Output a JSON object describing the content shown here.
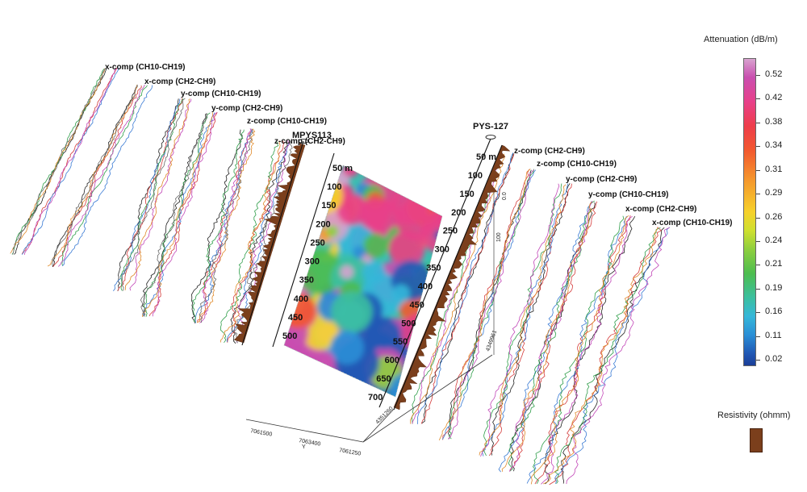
{
  "legend": {
    "attenuation_title": "Attenuation (dB/m)",
    "attenuation_ticks": [
      "0.52",
      "0.42",
      "0.38",
      "0.34",
      "0.31",
      "0.29",
      "0.26",
      "0.24",
      "0.21",
      "0.19",
      "0.16",
      "0.11",
      "0.02"
    ],
    "resistivity_title": "Resistivity (ohmm)",
    "resistivity_color": "#7b3f1c"
  },
  "boreholes": {
    "left": "MPYS113",
    "right": "PYS-127"
  },
  "left_depths": [
    "50 m",
    "100",
    "150",
    "200",
    "250",
    "300",
    "350",
    "400",
    "450",
    "500"
  ],
  "right_depths": [
    "50 m",
    "100",
    "150",
    "200",
    "250",
    "300",
    "350",
    "400",
    "450",
    "500",
    "550",
    "600",
    "650",
    "700"
  ],
  "left_traces": [
    "x-comp (CH10-CH19)",
    "x-comp (CH2-CH9)",
    "y-comp (CH10-CH19)",
    "y-comp (CH2-CH9)",
    "z-comp (CH10-CH19)",
    "z-comp (CH2-CH9)"
  ],
  "right_traces": [
    "z-comp (CH2-CH9)",
    "z-comp (CH10-CH19)",
    "y-comp (CH2-CH9)",
    "y-comp (CH10-CH19)",
    "x-comp (CH2-CH9)",
    "x-comp (CH10-CH19)"
  ],
  "axes": {
    "y_ticks": [
      "7061500",
      "7063400",
      "7061250"
    ],
    "y_label": "Y",
    "small_labels": [
      "100",
      "0.0",
      "4349961",
      "4351260"
    ]
  },
  "colors": {
    "trace_palette": [
      "#222222",
      "#d43a3a",
      "#3a7bd4",
      "#2f9e4a",
      "#c247b8",
      "#e08a2a",
      "#6a6a6a",
      "#3ab5c9"
    ],
    "resistivity": "#7b3f1c"
  }
}
